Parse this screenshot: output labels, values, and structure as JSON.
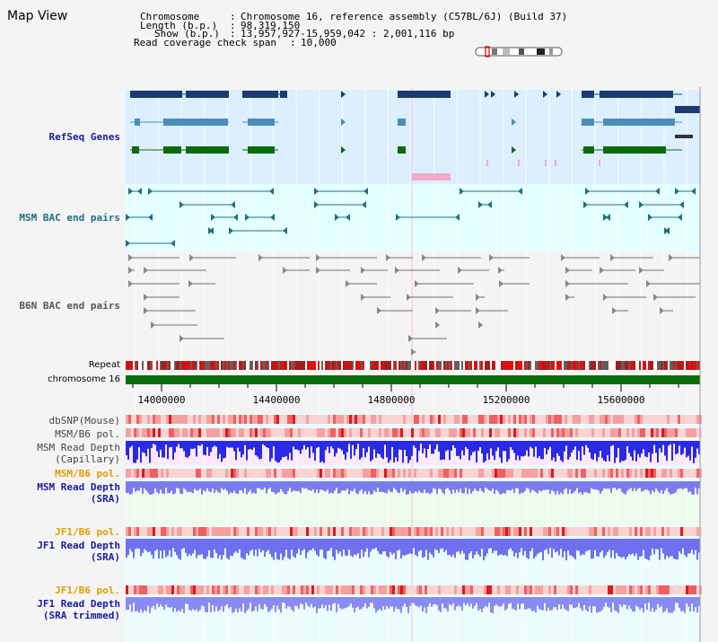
{
  "view_title": "Map View",
  "header": {
    "chromosome_label": "Chromosome",
    "chromosome_value": "Chromosome 16, reference assembly (C57BL/6J) (Build 37)",
    "length_label": "Length (b.p.)",
    "length_value": "98,319,150",
    "show_label": "Show (b.p.)",
    "show_value": "13,957,927-15,959,042 : 2,001,116 bp",
    "coverage_label": "Read coverage check span",
    "coverage_value": "10,000"
  },
  "tracks": {
    "refseq": "RefSeq Genes",
    "msm_bac": "MSM BAC end pairs",
    "b6n_bac": "B6N BAC end pairs",
    "repeat": "Repeat",
    "chromosome": "chromosome 16",
    "dbsnp": "dbSNP(Mouse)",
    "msm_b6_pol_1": "MSM/B6 pol.",
    "msm_read_depth_cap": "MSM Read Depth\n(Capillary)",
    "msm_b6_pol_2": "MSM/B6 pol.",
    "msm_read_depth_sra": "MSM Read Depth\n(SRA)",
    "jf1_b6_pol_1": "JF1/B6 pol.",
    "jf1_read_depth_sra": "JF1 Read Depth\n(SRA)",
    "jf1_b6_pol_2": "JF1/B6 pol.",
    "jf1_read_depth_trim": "JF1 Read Depth\n(SRA trimmed)"
  },
  "axis": {
    "ticks": [
      "14000000",
      "14400000",
      "14800000",
      "15200000",
      "15600000"
    ]
  },
  "colors": {
    "refseq_bg": "#dcefff",
    "msm_bg": "#e4ffff",
    "navy": "#1c3a6e",
    "steel": "#4b8db8",
    "green": "#0b6b0b",
    "teal": "#1f6f85",
    "gray_pair": "#707070",
    "pink": "#f7a8c8",
    "chrom_green": "#0a6e0a",
    "track_label_blue": "#1a1aa0",
    "track_label_orange": "#e69a00",
    "track_label_gray": "#333333"
  }
}
